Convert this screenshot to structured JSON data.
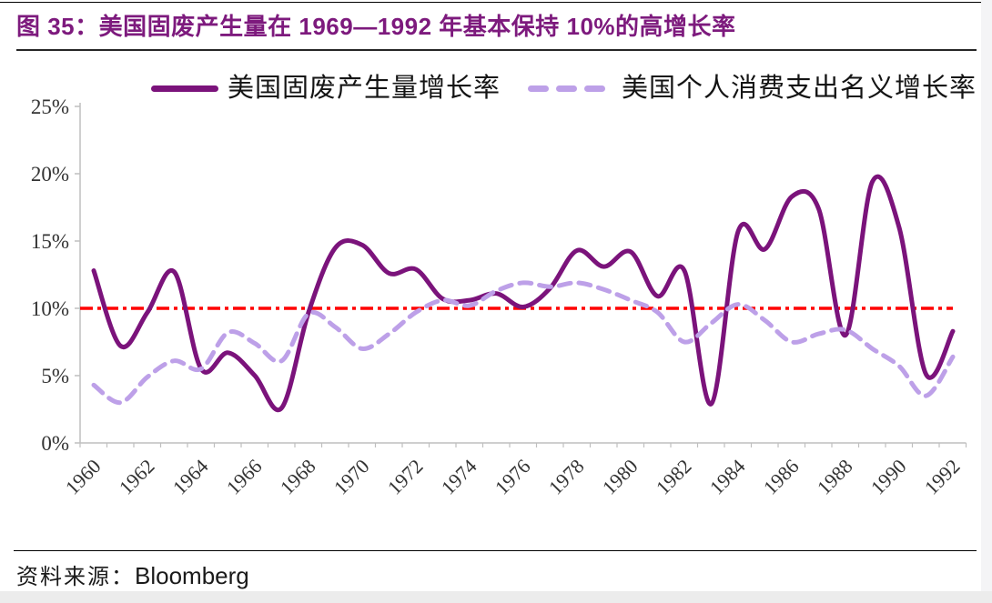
{
  "title": {
    "prefix": "图 35：",
    "text": "美国固废产生量在 1969—1992 年基本保持 10%的高增长率",
    "color": "#7D1A7D"
  },
  "legend": {
    "position": "top",
    "items": [
      {
        "label": "美国固废产生量增长率",
        "style": "solid",
        "color": "#7B137B"
      },
      {
        "label": "美国个人消费支出名义增长率",
        "style": "dashed",
        "color": "#BDA0E8"
      }
    ]
  },
  "source": {
    "label": "资料来源：",
    "value": "Bloomberg"
  },
  "chart_data": {
    "type": "line",
    "title": "图 35：美国固废产生量在 1969—1992 年基本保持 10%的高增长率",
    "x": [
      1960,
      1961,
      1962,
      1963,
      1964,
      1965,
      1966,
      1967,
      1968,
      1969,
      1970,
      1971,
      1972,
      1973,
      1974,
      1975,
      1976,
      1977,
      1978,
      1979,
      1980,
      1981,
      1982,
      1983,
      1984,
      1985,
      1986,
      1987,
      1988,
      1989,
      1990,
      1991,
      1992
    ],
    "series": [
      {
        "name": "美国固废产生量增长率",
        "style": "solid",
        "color": "#7B137B",
        "values": [
          12.8,
          7.2,
          9.7,
          12.7,
          5.5,
          6.7,
          5.0,
          2.6,
          9.7,
          14.5,
          14.7,
          12.6,
          12.9,
          10.7,
          10.6,
          11.1,
          10.1,
          11.5,
          14.3,
          13.1,
          14.2,
          10.9,
          12.8,
          2.9,
          15.7,
          14.4,
          18.3,
          17.4,
          8.0,
          19.4,
          16.0,
          5.1,
          8.3
        ]
      },
      {
        "name": "美国个人消费支出名义增长率",
        "style": "dashed",
        "color": "#BDA0E8",
        "values": [
          4.3,
          3.0,
          4.9,
          6.1,
          5.5,
          8.2,
          7.4,
          6.1,
          9.6,
          8.6,
          7.0,
          8.1,
          9.7,
          10.6,
          10.2,
          11.3,
          11.9,
          11.6,
          11.9,
          11.4,
          10.6,
          9.7,
          7.5,
          8.9,
          10.3,
          9.1,
          7.5,
          8.1,
          8.4,
          7.0,
          5.7,
          3.5,
          6.4
        ]
      }
    ],
    "reference_line": {
      "value": 10,
      "color": "#FF0000",
      "style": "dash-dot"
    },
    "ylim": [
      0,
      25
    ],
    "ytick_labels": [
      "0%",
      "5%",
      "10%",
      "15%",
      "20%",
      "25%"
    ],
    "xtick_labels": [
      "1960",
      "1962",
      "1964",
      "1966",
      "1968",
      "1970",
      "1972",
      "1974",
      "1976",
      "1978",
      "1980",
      "1982",
      "1984",
      "1986",
      "1988",
      "1990",
      "1992"
    ],
    "grid": false,
    "axis_color": "#BFBFBF",
    "tick_label_color": "#333333",
    "legend_position": "top"
  }
}
